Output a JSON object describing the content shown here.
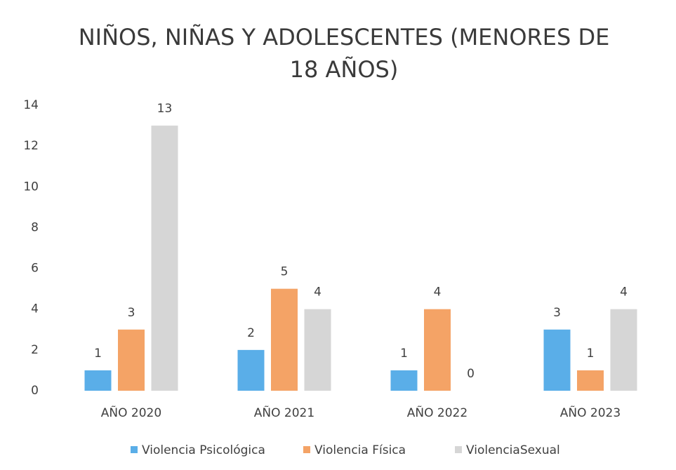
{
  "chart_data": {
    "type": "bar",
    "title": "NIÑOS, NIÑAS Y ADOLESCENTES (MENORES DE 18 AÑOS)",
    "categories": [
      "AÑO 2020",
      "AÑO 2021",
      "AÑO 2022",
      "AÑO 2023"
    ],
    "series": [
      {
        "name": "Violencia Psicológica",
        "color": "#5aaee8",
        "values": [
          1,
          2,
          1,
          3
        ]
      },
      {
        "name": "Violencia Física",
        "color": "#f4a366",
        "values": [
          3,
          5,
          4,
          1
        ]
      },
      {
        "name": "ViolenciaSexual",
        "color": "#d6d6d6",
        "values": [
          13,
          4,
          0,
          4
        ]
      }
    ],
    "ylim": [
      0,
      14
    ],
    "yticks": [
      0,
      2,
      4,
      6,
      8,
      10,
      12,
      14
    ],
    "grid": false,
    "legend": "bottom"
  }
}
